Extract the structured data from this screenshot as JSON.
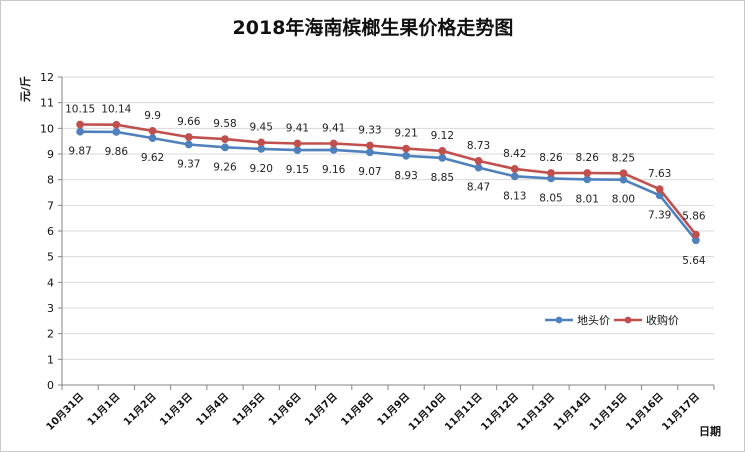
{
  "chart_data": {
    "type": "line",
    "title": "2018年海南槟榔生果价格走势图",
    "ylabel": "元/斤",
    "xlabel": "日期",
    "ylim": [
      0,
      12
    ],
    "ytick_step": 1,
    "grid": true,
    "legend_position": "right",
    "categories": [
      "10月31日",
      "11月1日",
      "11月2日",
      "11月3日",
      "11月4日",
      "11月5日",
      "11月6日",
      "11月7日",
      "11月8日",
      "11月9日",
      "11月10日",
      "11月11日",
      "11月12日",
      "11月13日",
      "11月14日",
      "11月15日",
      "11月16日",
      "11月17日"
    ],
    "series": [
      {
        "name": "地头价",
        "color": "#4f81bd",
        "label_position": "below",
        "values": [
          9.87,
          9.86,
          9.62,
          9.37,
          9.26,
          9.2,
          9.15,
          9.16,
          9.07,
          8.93,
          8.85,
          8.47,
          8.13,
          8.05,
          8.01,
          8.0,
          7.39,
          5.64
        ],
        "labels": [
          "9.87",
          "9.86",
          "9.62",
          "9.37",
          "9.26",
          "9.20",
          "9.15",
          "9.16",
          "9.07",
          "8.93",
          "8.85",
          "8.47",
          "8.13",
          "8.05",
          "8.01",
          "8.00",
          "7.39",
          "5.64"
        ]
      },
      {
        "name": "收购价",
        "color": "#c0504d",
        "label_position": "above",
        "values": [
          10.15,
          10.14,
          9.9,
          9.66,
          9.58,
          9.45,
          9.41,
          9.41,
          9.33,
          9.21,
          9.12,
          8.73,
          8.42,
          8.26,
          8.26,
          8.25,
          7.63,
          5.86
        ],
        "labels": [
          "10.15",
          "10.14",
          "9.9",
          "9.66",
          "9.58",
          "9.45",
          "9.41",
          "9.41",
          "9.33",
          "9.21",
          "9.12",
          "8.73",
          "8.42",
          "8.26",
          "8.26",
          "8.25",
          "7.63",
          "5.86"
        ]
      }
    ]
  }
}
